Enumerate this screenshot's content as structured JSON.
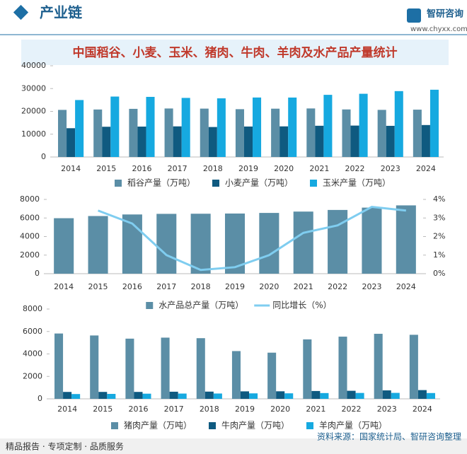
{
  "header": {
    "title": "产业链",
    "logo": "智研咨询",
    "url": "www.chyxx.com"
  },
  "banner": "中国稻谷、小麦、玉米、猪肉、牛肉、羊肉及水产品产量统计",
  "chart_data": [
    {
      "type": "bar",
      "categories": [
        "2014",
        "2015",
        "2016",
        "2017",
        "2018",
        "2019",
        "2020",
        "2021",
        "2022",
        "2023",
        "2024"
      ],
      "series": [
        {
          "name": "稻谷产量（万吨）",
          "color": "#5b8ea6",
          "values": [
            20651,
            20823,
            21109,
            21268,
            21213,
            20961,
            21186,
            21284,
            20849,
            20660,
            20754
          ]
        },
        {
          "name": "小麦产量（万吨）",
          "color": "#0f5a80",
          "values": [
            12621,
            13256,
            13327,
            13424,
            13144,
            13360,
            13425,
            13695,
            13772,
            13659,
            14010
          ]
        },
        {
          "name": "玉米产量（万吨）",
          "color": "#16a9e0",
          "values": [
            24976,
            26499,
            26361,
            25907,
            25717,
            26078,
            26067,
            27255,
            27720,
            28884,
            29492
          ]
        }
      ],
      "ylim": [
        0,
        40000
      ],
      "yticks": [
        0,
        10000,
        20000,
        30000,
        40000
      ]
    },
    {
      "type": "bar",
      "categories": [
        "2014",
        "2015",
        "2016",
        "2017",
        "2018",
        "2019",
        "2020",
        "2021",
        "2022",
        "2023",
        "2024"
      ],
      "series": [
        {
          "name": "水产品总产量（万吨）",
          "color": "#5b8ea6",
          "values": [
            5976,
            6211,
            6379,
            6445,
            6458,
            6480,
            6545,
            6690,
            6866,
            7116,
            7358
          ]
        },
        {
          "name": "同比增长（%）",
          "color": "#7fcdf0",
          "type": "line",
          "axis": "y2",
          "values": [
            null,
            3.4,
            2.7,
            1.0,
            0.2,
            0.35,
            1.0,
            2.2,
            2.6,
            3.6,
            3.4
          ]
        }
      ],
      "ylim": [
        0,
        8000
      ],
      "yticks": [
        0,
        2000,
        4000,
        6000,
        8000
      ],
      "y2lim": [
        0,
        4
      ],
      "y2ticks": [
        {
          "value": 0,
          "label": "0%"
        },
        {
          "value": 1,
          "label": "1%"
        },
        {
          "value": 2,
          "label": "2%"
        },
        {
          "value": 3,
          "label": "3%"
        },
        {
          "value": 4,
          "label": "4%"
        }
      ]
    },
    {
      "type": "bar",
      "categories": [
        "2014",
        "2015",
        "2016",
        "2017",
        "2018",
        "2019",
        "2020",
        "2021",
        "2022",
        "2023",
        "2024"
      ],
      "series": [
        {
          "name": "猪肉产量（万吨）",
          "color": "#5b8ea6",
          "values": [
            5820,
            5645,
            5362,
            5452,
            5404,
            4255,
            4113,
            5296,
            5541,
            5794,
            5706
          ]
        },
        {
          "name": "牛肉产量（万吨）",
          "color": "#0f5a80",
          "values": [
            615,
            617,
            617,
            635,
            644,
            667,
            672,
            698,
            718,
            753,
            779
          ]
        },
        {
          "name": "羊肉产量（万吨）",
          "color": "#16a9e0",
          "values": [
            428,
            440,
            460,
            471,
            475,
            488,
            492,
            514,
            525,
            531,
            518
          ]
        }
      ],
      "ylim": [
        0,
        8000
      ],
      "yticks": [
        0,
        2000,
        4000,
        6000,
        8000
      ]
    }
  ],
  "footer": {
    "slogan": "精品报告 · 专项定制 · 品质服务",
    "source": "资料来源：国家统计局、智研咨询整理"
  }
}
